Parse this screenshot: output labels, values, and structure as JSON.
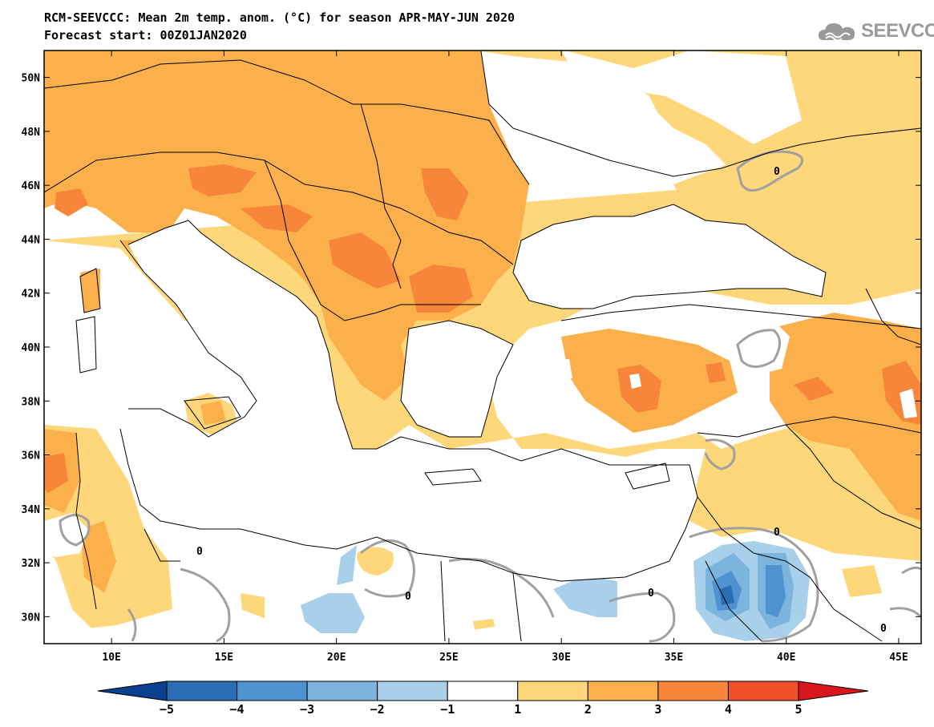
{
  "header": {
    "title": "RCM-SEEVCCC: Mean 2m temp. anom. (°C) for season APR-MAY-JUN 2020",
    "subtitle": "Forecast start: 00Z01JAN2020"
  },
  "logo": {
    "text": "SEEVCCC",
    "icon": "cloud-icon"
  },
  "axes": {
    "lon_labels": [
      "10E",
      "15E",
      "20E",
      "25E",
      "30E",
      "35E",
      "40E",
      "45E"
    ],
    "lon_values": [
      10,
      15,
      20,
      25,
      30,
      35,
      40,
      45
    ],
    "lat_labels": [
      "50N",
      "48N",
      "46N",
      "44N",
      "42N",
      "40N",
      "38N",
      "36N",
      "34N",
      "32N",
      "30N"
    ],
    "lat_values": [
      50,
      48,
      46,
      44,
      42,
      40,
      38,
      36,
      34,
      32,
      30
    ],
    "lon_range": [
      7,
      46
    ],
    "lat_range": [
      29,
      51
    ]
  },
  "contour_label": "0",
  "colorbar": {
    "labels": [
      "−5",
      "−4",
      "−3",
      "−2",
      "−1",
      "1",
      "2",
      "3",
      "4",
      "5"
    ],
    "colors": [
      "#0b3f8f",
      "#2a6db5",
      "#4e93cf",
      "#7bb4dd",
      "#a9d0ea",
      "#ffffff",
      "#fdd77a",
      "#fbb04c",
      "#f7853a",
      "#f0512b",
      "#d8161c"
    ]
  },
  "colors": {
    "anom_1_2": "#fdd77a",
    "anom_2_3": "#fbb04c",
    "anom_3_4": "#f7853a",
    "anom_m1_m2": "#a9d0ea",
    "anom_m2_m3": "#7bb4dd",
    "anom_m3_m4": "#4e93cf",
    "anom_m4_m5": "#2a6db5",
    "zero_contour": "#a0a0a0"
  }
}
